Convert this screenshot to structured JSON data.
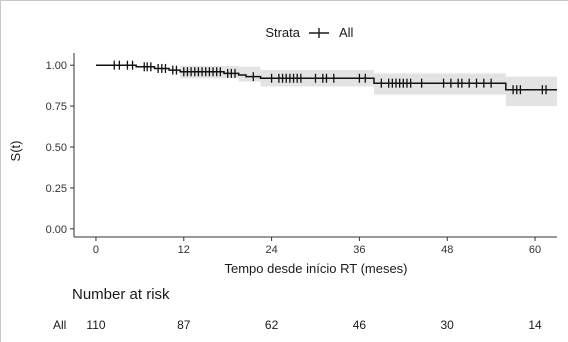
{
  "chart_data": {
    "type": "line",
    "xlabel": "Tempo desde início RT (meses)",
    "ylabel": "S(t)",
    "xlim": [
      -3,
      63
    ],
    "ylim": [
      -0.05,
      1.05
    ],
    "xticks": [
      0,
      12,
      24,
      36,
      48,
      60
    ],
    "yticks": [
      0.0,
      0.25,
      0.5,
      0.75,
      1.0
    ],
    "ytick_labels": [
      "0.00",
      "0.25",
      "0.50",
      "0.75",
      "1.00"
    ],
    "grid": false,
    "legend": {
      "title": "Strata",
      "entries": [
        "All"
      ],
      "position": "top"
    },
    "series": [
      {
        "name": "All",
        "steps": [
          {
            "t": 0,
            "s": 1.0
          },
          {
            "t": 5.5,
            "s": 0.99
          },
          {
            "t": 8.0,
            "s": 0.98
          },
          {
            "t": 10.0,
            "s": 0.97
          },
          {
            "t": 11.5,
            "s": 0.96
          },
          {
            "t": 17.5,
            "s": 0.95
          },
          {
            "t": 19.5,
            "s": 0.94
          },
          {
            "t": 20.5,
            "s": 0.93
          },
          {
            "t": 22.5,
            "s": 0.92
          },
          {
            "t": 38.0,
            "s": 0.89
          },
          {
            "t": 56.0,
            "s": 0.85
          },
          {
            "t": 63,
            "s": 0.85
          }
        ],
        "ci": [
          {
            "t": 0,
            "lo": 1.0,
            "hi": 1.0
          },
          {
            "t": 11.5,
            "lo": 0.92,
            "hi": 0.995
          },
          {
            "t": 19.5,
            "lo": 0.9,
            "hi": 0.99
          },
          {
            "t": 22.5,
            "lo": 0.87,
            "hi": 0.97
          },
          {
            "t": 38.0,
            "lo": 0.82,
            "hi": 0.95
          },
          {
            "t": 56.0,
            "lo": 0.75,
            "hi": 0.93
          }
        ],
        "censor_times": [
          2.5,
          3.2,
          4.3,
          5.0,
          6.6,
          7.0,
          7.5,
          8.5,
          9.0,
          9.5,
          10.5,
          11.0,
          12.0,
          12.5,
          13.0,
          13.5,
          14.0,
          14.5,
          15.0,
          15.5,
          16.0,
          16.5,
          17.0,
          18.0,
          18.5,
          19.0,
          21.5,
          24.0,
          25.0,
          25.5,
          26.0,
          26.5,
          27.0,
          27.5,
          28.0,
          30.0,
          31.0,
          31.5,
          32.5,
          36.0,
          36.8,
          39.0,
          40.0,
          40.5,
          41.0,
          41.5,
          42.0,
          42.5,
          43.0,
          44.5,
          47.5,
          48.5,
          49.5,
          50.0,
          51.0,
          52.0,
          53.0,
          54.0,
          57.0,
          57.5,
          58.0,
          61.0,
          61.5
        ]
      }
    ]
  },
  "risk_table": {
    "title": "Number at risk",
    "strata": "All",
    "times": [
      0,
      12,
      24,
      36,
      48,
      60
    ],
    "values": [
      "110",
      "87",
      "62",
      "46",
      "30",
      "14"
    ]
  }
}
